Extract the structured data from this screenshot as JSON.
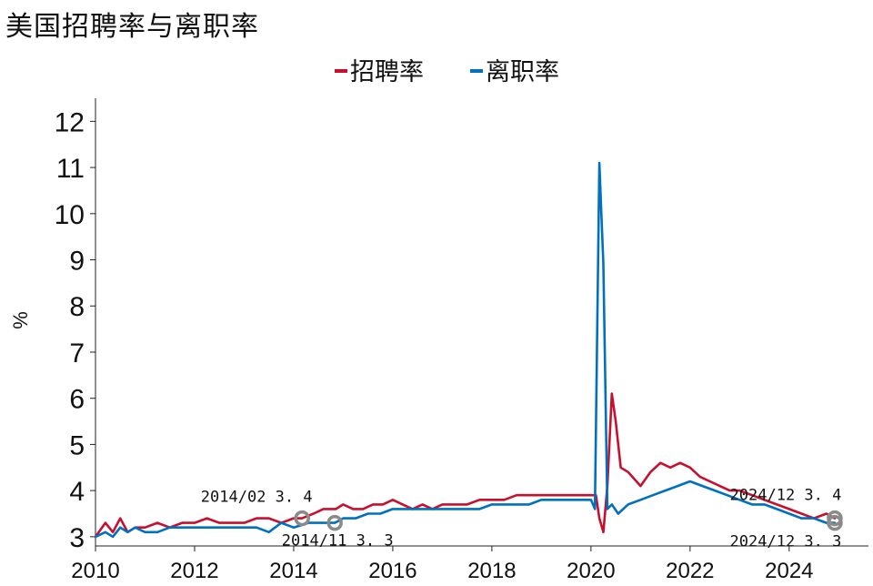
{
  "title": "美国招聘率与离职率",
  "chart_data": {
    "type": "line",
    "title": "美国招聘率与离职率",
    "ylabel": "%",
    "xlabel": "",
    "xlim": [
      2010,
      2025.6
    ],
    "ylim": [
      2.8,
      12.5
    ],
    "yticks": [
      3,
      4,
      5,
      6,
      7,
      8,
      9,
      10,
      11,
      12
    ],
    "xticks": [
      2010,
      2012,
      2014,
      2016,
      2018,
      2020,
      2022,
      2024
    ],
    "grid": false,
    "legend": "top-center",
    "series": [
      {
        "name": "招聘率",
        "color": "#c8102e",
        "x": [
          2010.0,
          2010.2,
          2010.35,
          2010.5,
          2010.65,
          2010.8,
          2011.0,
          2011.25,
          2011.5,
          2011.75,
          2012.0,
          2012.25,
          2012.5,
          2012.75,
          2013.0,
          2013.25,
          2013.5,
          2013.75,
          2014.0,
          2014.17,
          2014.4,
          2014.6,
          2014.85,
          2015.0,
          2015.2,
          2015.4,
          2015.6,
          2015.8,
          2016.0,
          2016.2,
          2016.4,
          2016.6,
          2016.8,
          2017.0,
          2017.25,
          2017.5,
          2017.75,
          2018.0,
          2018.25,
          2018.5,
          2018.75,
          2019.0,
          2019.25,
          2019.5,
          2019.75,
          2020.0,
          2020.1,
          2020.17,
          2020.25,
          2020.33,
          2020.42,
          2020.5,
          2020.6,
          2020.75,
          2021.0,
          2021.2,
          2021.4,
          2021.6,
          2021.8,
          2022.0,
          2022.2,
          2022.4,
          2022.6,
          2022.8,
          2023.0,
          2023.25,
          2023.5,
          2023.75,
          2024.0,
          2024.25,
          2024.5,
          2024.75,
          2024.92
        ],
        "values": [
          3.0,
          3.3,
          3.1,
          3.4,
          3.1,
          3.2,
          3.2,
          3.3,
          3.2,
          3.3,
          3.3,
          3.4,
          3.3,
          3.3,
          3.3,
          3.4,
          3.4,
          3.3,
          3.4,
          3.4,
          3.5,
          3.6,
          3.6,
          3.7,
          3.6,
          3.6,
          3.7,
          3.7,
          3.8,
          3.7,
          3.6,
          3.7,
          3.6,
          3.7,
          3.7,
          3.7,
          3.8,
          3.8,
          3.8,
          3.9,
          3.9,
          3.9,
          3.9,
          3.9,
          3.9,
          3.9,
          3.9,
          3.4,
          3.1,
          4.1,
          6.1,
          5.5,
          4.5,
          4.4,
          4.1,
          4.4,
          4.6,
          4.5,
          4.6,
          4.5,
          4.3,
          4.2,
          4.1,
          4.0,
          4.0,
          3.9,
          3.8,
          3.7,
          3.6,
          3.5,
          3.4,
          3.5,
          3.4
        ]
      },
      {
        "name": "离职率",
        "color": "#0070c0",
        "x": [
          2010.0,
          2010.2,
          2010.35,
          2010.5,
          2010.65,
          2010.8,
          2011.0,
          2011.25,
          2011.5,
          2011.75,
          2012.0,
          2012.25,
          2012.5,
          2012.75,
          2013.0,
          2013.25,
          2013.5,
          2013.75,
          2014.0,
          2014.3,
          2014.6,
          2014.83,
          2015.0,
          2015.25,
          2015.5,
          2015.75,
          2016.0,
          2016.25,
          2016.5,
          2016.75,
          2017.0,
          2017.25,
          2017.5,
          2017.75,
          2018.0,
          2018.25,
          2018.5,
          2018.75,
          2019.0,
          2019.25,
          2019.5,
          2019.75,
          2020.0,
          2020.08,
          2020.17,
          2020.25,
          2020.33,
          2020.42,
          2020.55,
          2020.75,
          2021.0,
          2021.25,
          2021.5,
          2021.75,
          2022.0,
          2022.25,
          2022.5,
          2022.75,
          2023.0,
          2023.25,
          2023.5,
          2023.75,
          2024.0,
          2024.25,
          2024.5,
          2024.75,
          2024.92
        ],
        "values": [
          3.0,
          3.1,
          3.0,
          3.2,
          3.1,
          3.2,
          3.1,
          3.1,
          3.2,
          3.2,
          3.2,
          3.2,
          3.2,
          3.2,
          3.2,
          3.2,
          3.1,
          3.3,
          3.2,
          3.3,
          3.3,
          3.3,
          3.4,
          3.4,
          3.5,
          3.5,
          3.6,
          3.6,
          3.6,
          3.6,
          3.6,
          3.6,
          3.6,
          3.6,
          3.7,
          3.7,
          3.7,
          3.7,
          3.8,
          3.8,
          3.8,
          3.8,
          3.8,
          3.6,
          11.1,
          8.9,
          3.6,
          3.7,
          3.5,
          3.7,
          3.8,
          3.9,
          4.0,
          4.1,
          4.2,
          4.1,
          4.0,
          3.9,
          3.8,
          3.7,
          3.7,
          3.6,
          3.5,
          3.4,
          3.4,
          3.3,
          3.3
        ]
      }
    ],
    "annotations": [
      {
        "series": "招聘率",
        "x": 2014.17,
        "y": 3.4,
        "label": "2014/02  3. 4",
        "position": "above"
      },
      {
        "series": "离职率",
        "x": 2014.83,
        "y": 3.3,
        "label": "2014/11  3. 3",
        "position": "below"
      },
      {
        "series": "招聘率",
        "x": 2024.92,
        "y": 3.4,
        "label": "2024/12  3. 4",
        "position": "above-left"
      },
      {
        "series": "离职率",
        "x": 2024.92,
        "y": 3.3,
        "label": "2024/12  3. 3",
        "position": "below-left"
      }
    ]
  }
}
